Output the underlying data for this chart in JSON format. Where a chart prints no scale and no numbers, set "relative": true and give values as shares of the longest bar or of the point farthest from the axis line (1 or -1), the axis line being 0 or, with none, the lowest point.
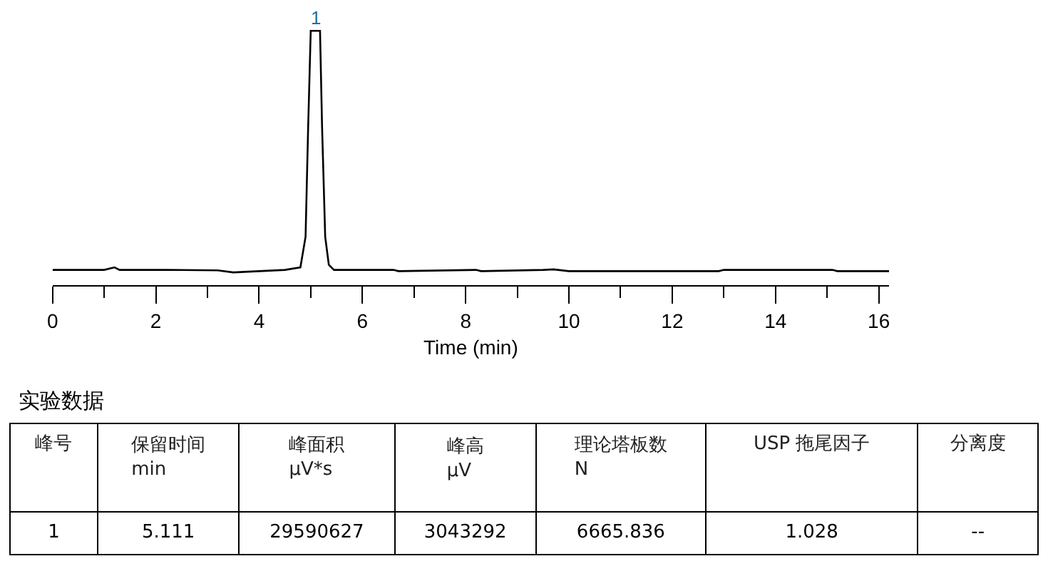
{
  "chart_data": [
    {
      "type": "line",
      "relative": true,
      "xlabel": "Time (min)",
      "xlim": [
        0,
        16.2
      ],
      "xticks": [
        0,
        {
          "value": 1,
          "label": null
        },
        2,
        {
          "value": 3,
          "label": null
        },
        4,
        {
          "value": 5,
          "label": null
        },
        6,
        {
          "value": 7,
          "label": null
        },
        8,
        {
          "value": 9,
          "label": null
        },
        10,
        {
          "value": 11,
          "label": null
        },
        12,
        {
          "value": 13,
          "label": null
        },
        14,
        {
          "value": 15,
          "label": null
        },
        16
      ],
      "marker": "none",
      "line_style": "solid",
      "annotations": [
        {
          "text": "1",
          "x": 5.111,
          "y": 1
        }
      ],
      "series": [
        {
          "color": "#000000",
          "x": [
            0,
            1.0,
            1.2,
            1.3,
            2.2,
            3.2,
            3.5,
            4.0,
            4.5,
            4.8,
            4.9,
            4.95,
            5.0,
            5.18,
            5.22,
            5.28,
            5.35,
            5.45,
            6.6,
            6.7,
            8.2,
            8.3,
            9.5,
            9.7,
            10.0,
            12.9,
            13.0,
            15.1,
            15.2,
            16.2
          ],
          "values": [
            0.06,
            0.06,
            0.07,
            0.06,
            0.06,
            0.058,
            0.05,
            0.055,
            0.06,
            0.07,
            0.19,
            0.62,
            1,
            1,
            0.62,
            0.19,
            0.08,
            0.06,
            0.06,
            0.055,
            0.06,
            0.055,
            0.06,
            0.062,
            0.055,
            0.055,
            0.06,
            0.06,
            0.055,
            0.055
          ]
        }
      ]
    },
    {
      "type": "other",
      "title": "实验数据",
      "annotations": [
        "峰号",
        "保留时间\nmin",
        "峰面积\nμV*s",
        "峰高\nμV",
        "理论塔板数\nN",
        "USP 拖尾因子",
        "分离度",
        "1",
        "5.111",
        "29590627",
        "3043292",
        "6665.836",
        "1.028",
        "--"
      ]
    }
  ]
}
